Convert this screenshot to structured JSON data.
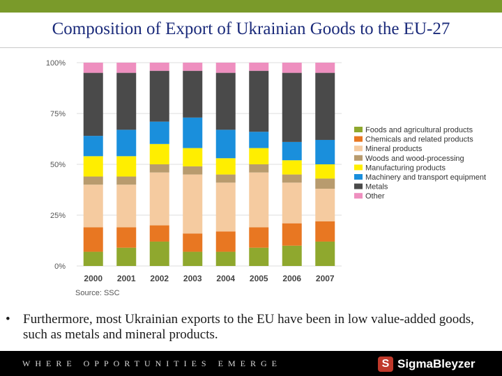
{
  "slide": {
    "title": "Composition of Export of Ukrainian Goods to the EU-27",
    "bullet_symbol": "•",
    "bullet": "Furthermore, most Ukrainian exports to the EU have been in low value-added goods, such as metals and mineral products.",
    "footer_tagline": "WHERE OPPORTUNITIES EMERGE",
    "logo_mark": "S",
    "logo_text": "SigmaBleyzer"
  },
  "colors": {
    "topbar": "#7a9a2a",
    "title": "#1a2a7a"
  },
  "chart_data": {
    "type": "bar",
    "stacked": true,
    "categories": [
      "2000",
      "2001",
      "2002",
      "2003",
      "2004",
      "2005",
      "2006",
      "2007"
    ],
    "yticks": [
      "0%",
      "25%",
      "50%",
      "75%",
      "100%"
    ],
    "ylim": [
      0,
      100
    ],
    "source": "Source: SSC",
    "legend_position": "right",
    "series": [
      {
        "name": "Foods and agricultural products",
        "color": "#8fa82e",
        "values": [
          7,
          9,
          12,
          7,
          7,
          9,
          10,
          12
        ]
      },
      {
        "name": "Chemicals and related products",
        "color": "#e87722",
        "values": [
          12,
          10,
          8,
          9,
          10,
          10,
          11,
          10
        ]
      },
      {
        "name": "Mineral products",
        "color": "#f5cba0",
        "values": [
          21,
          21,
          26,
          29,
          24,
          27,
          20,
          16
        ]
      },
      {
        "name": "Woods and wood-processing",
        "color": "#b89b6e",
        "values": [
          4,
          4,
          4,
          4,
          4,
          4,
          4,
          5
        ]
      },
      {
        "name": "Manufacturing products",
        "color": "#ffee00",
        "values": [
          10,
          10,
          10,
          9,
          8,
          8,
          7,
          7
        ]
      },
      {
        "name": "Machinery and transport equipment",
        "color": "#1a8fdc",
        "values": [
          10,
          13,
          11,
          15,
          14,
          8,
          9,
          12
        ]
      },
      {
        "name": "Metals",
        "color": "#4a4a4a",
        "values": [
          31,
          28,
          25,
          23,
          28,
          30,
          34,
          33
        ]
      },
      {
        "name": "Other",
        "color": "#ee8fbf",
        "values": [
          5,
          5,
          4,
          4,
          5,
          4,
          5,
          5
        ]
      }
    ]
  }
}
